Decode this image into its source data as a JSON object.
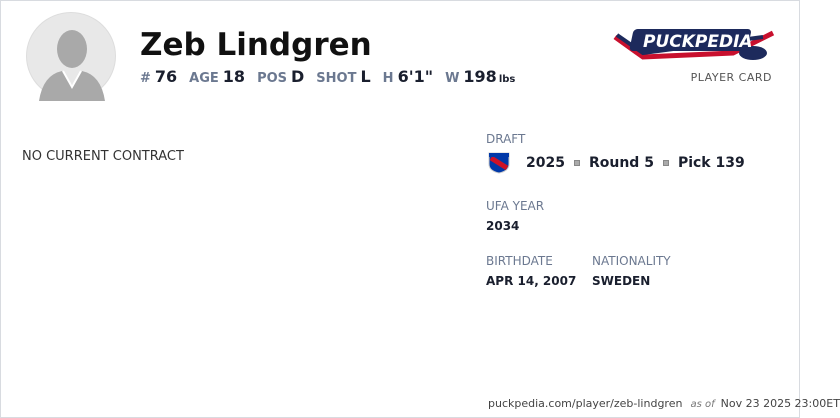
{
  "player": {
    "name": "Zeb Lindgren",
    "number_label": "#",
    "number": "76",
    "age_label": "AGE",
    "age": "18",
    "pos_label": "POS",
    "pos": "D",
    "shot_label": "SHOT",
    "shot": "L",
    "height_label": "H",
    "height": "6'1\"",
    "weight_label": "W",
    "weight": "198",
    "weight_unit": "lbs"
  },
  "brand": {
    "logo": "PuckPedia",
    "subtitle": "PLAYER CARD"
  },
  "contract": {
    "status": "NO CURRENT CONTRACT"
  },
  "draft": {
    "label": "DRAFT",
    "team_logo": "new-york-rangers-logo",
    "year": "2025",
    "round": "Round 5",
    "pick": "Pick 139"
  },
  "ufa": {
    "label": "UFA YEAR",
    "value": "2034"
  },
  "birthdate": {
    "label": "BIRTHDATE",
    "value": "APR 14, 2007"
  },
  "nationality": {
    "label": "NATIONALITY",
    "value": "SWEDEN"
  },
  "footer": {
    "url": "puckpedia.com/player/zeb-lindgren",
    "as_of": "as of",
    "timestamp": "Nov 23 2025 23:00ET"
  }
}
